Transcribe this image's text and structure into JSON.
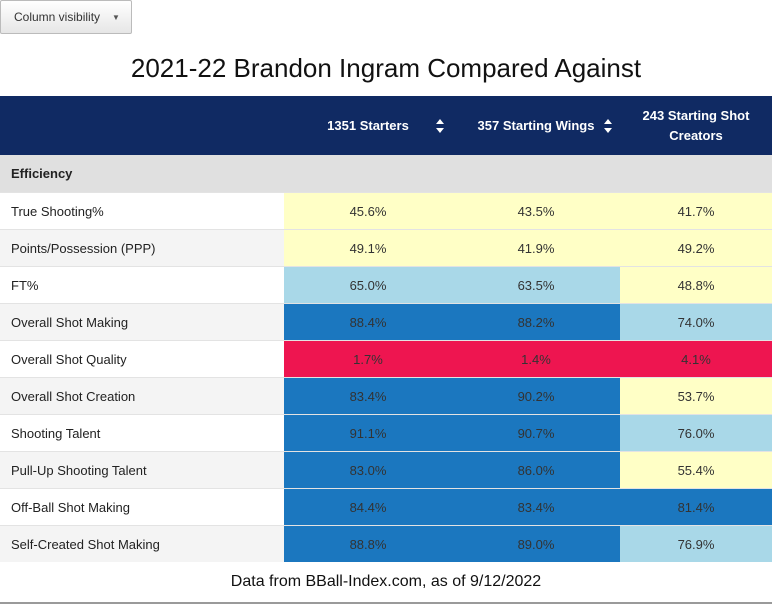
{
  "toolbar": {
    "column_visibility_label": "Column visibility",
    "caret_icon": "chevron-down-icon"
  },
  "title": "2021-22 Brandon Ingram Compared Against",
  "columns": [
    {
      "label": "1351 Starters",
      "sortable": true
    },
    {
      "label": "357 Starting Wings",
      "sortable": true
    },
    {
      "label": "243 Starting Shot Creators",
      "sortable": false
    }
  ],
  "group": "Efficiency",
  "colors": {
    "yellow": "#ffffc6",
    "light_blue": "#a9d8e8",
    "blue": "#1b77bf",
    "red": "#ee1550",
    "header_bg": "#102a63"
  },
  "rows": [
    {
      "label": "True Shooting%",
      "cells": [
        {
          "value": "45.6%",
          "color": "yellow"
        },
        {
          "value": "43.5%",
          "color": "yellow"
        },
        {
          "value": "41.7%",
          "color": "yellow"
        }
      ]
    },
    {
      "label": "Points/Possession (PPP)",
      "cells": [
        {
          "value": "49.1%",
          "color": "yellow"
        },
        {
          "value": "41.9%",
          "color": "yellow"
        },
        {
          "value": "49.2%",
          "color": "yellow"
        }
      ]
    },
    {
      "label": "FT%",
      "cells": [
        {
          "value": "65.0%",
          "color": "light_blue"
        },
        {
          "value": "63.5%",
          "color": "light_blue"
        },
        {
          "value": "48.8%",
          "color": "yellow"
        }
      ]
    },
    {
      "label": "Overall Shot Making",
      "cells": [
        {
          "value": "88.4%",
          "color": "blue"
        },
        {
          "value": "88.2%",
          "color": "blue"
        },
        {
          "value": "74.0%",
          "color": "light_blue"
        }
      ]
    },
    {
      "label": "Overall Shot Quality",
      "cells": [
        {
          "value": "1.7%",
          "color": "red"
        },
        {
          "value": "1.4%",
          "color": "red"
        },
        {
          "value": "4.1%",
          "color": "red"
        }
      ]
    },
    {
      "label": "Overall Shot Creation",
      "cells": [
        {
          "value": "83.4%",
          "color": "blue"
        },
        {
          "value": "90.2%",
          "color": "blue"
        },
        {
          "value": "53.7%",
          "color": "yellow"
        }
      ]
    },
    {
      "label": "Shooting Talent",
      "cells": [
        {
          "value": "91.1%",
          "color": "blue"
        },
        {
          "value": "90.7%",
          "color": "blue"
        },
        {
          "value": "76.0%",
          "color": "light_blue"
        }
      ]
    },
    {
      "label": "Pull-Up Shooting Talent",
      "cells": [
        {
          "value": "83.0%",
          "color": "blue"
        },
        {
          "value": "86.0%",
          "color": "blue"
        },
        {
          "value": "55.4%",
          "color": "yellow"
        }
      ]
    },
    {
      "label": "Off-Ball Shot Making",
      "cells": [
        {
          "value": "84.4%",
          "color": "blue"
        },
        {
          "value": "83.4%",
          "color": "blue"
        },
        {
          "value": "81.4%",
          "color": "blue"
        }
      ]
    },
    {
      "label": "Self-Created Shot Making",
      "cells": [
        {
          "value": "88.8%",
          "color": "blue"
        },
        {
          "value": "89.0%",
          "color": "blue"
        },
        {
          "value": "76.9%",
          "color": "light_blue"
        }
      ]
    }
  ],
  "footer": "Data from BBall-Index.com, as of 9/12/2022"
}
